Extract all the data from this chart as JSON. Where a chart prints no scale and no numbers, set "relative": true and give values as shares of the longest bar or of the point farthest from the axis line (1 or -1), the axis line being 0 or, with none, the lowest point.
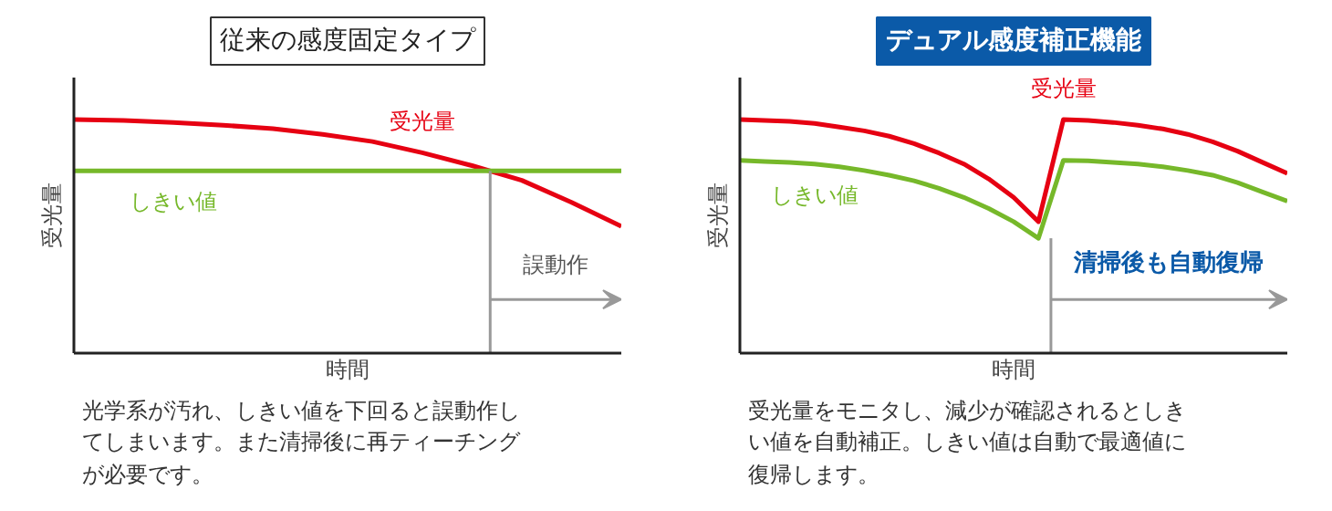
{
  "chart_data": [
    {
      "type": "line",
      "relative": true,
      "title": "従来の感度固定タイプ",
      "xlabel": "時間",
      "ylabel": "受光量",
      "categories": [
        null,
        null,
        null,
        null,
        null,
        null,
        null,
        null,
        null,
        null,
        null,
        null
      ],
      "series": [
        {
          "name": "受光量",
          "color": "#e60012",
          "values": [
            1.0,
            0.996,
            0.988,
            0.976,
            0.961,
            0.937,
            0.906,
            0.858,
            0.803,
            0.74,
            0.646,
            0.543
          ]
        },
        {
          "name": "しきい値",
          "color": "#76b82a",
          "values": [
            0.78,
            0.78,
            0.78,
            0.78,
            0.78,
            0.78,
            0.78,
            0.78,
            0.78,
            0.78,
            0.78,
            0.78
          ]
        }
      ],
      "annotations": [
        "誤動作",
        "光学系が汚れ、しきい値を下回ると誤動作してしまいます。また清掃後に再ティーチングが必要です。"
      ]
    },
    {
      "type": "line",
      "relative": true,
      "title": "デュアル感度補正機能",
      "xlabel": "時間",
      "ylabel": "受光量",
      "categories": [
        null,
        null,
        null,
        null,
        null,
        null,
        null,
        null,
        null,
        null,
        null,
        null,
        null,
        null,
        null,
        null,
        null,
        null,
        null,
        null,
        null,
        null,
        null
      ],
      "series": [
        {
          "name": "受光量",
          "color": "#e60012",
          "values": [
            1.0,
            0.996,
            0.992,
            0.984,
            0.968,
            0.952,
            0.929,
            0.897,
            0.857,
            0.81,
            0.746,
            0.667,
            0.563,
            1.0,
            0.996,
            0.988,
            0.976,
            0.96,
            0.937,
            0.905,
            0.865,
            0.817,
            0.77
          ]
        },
        {
          "name": "しきい値",
          "color": "#76b82a",
          "values": [
            0.825,
            0.821,
            0.817,
            0.81,
            0.798,
            0.782,
            0.762,
            0.738,
            0.706,
            0.667,
            0.619,
            0.563,
            0.492,
            0.825,
            0.823,
            0.817,
            0.81,
            0.798,
            0.782,
            0.762,
            0.73,
            0.69,
            0.651
          ]
        }
      ],
      "annotations": [
        "清掃後も自動復帰",
        "受光量をモニタし、減少が確認されるとしきい値を自動補正。しきい値は自動で最適値に復帰します。"
      ]
    }
  ]
}
